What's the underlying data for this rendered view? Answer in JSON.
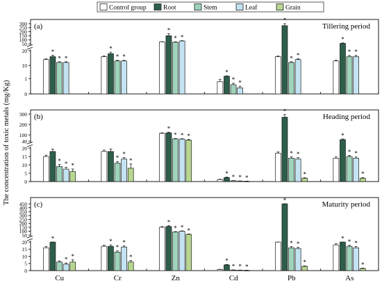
{
  "figure": {
    "ylabel": "The concentration of toxic metals (mg/Kg)",
    "legend": {
      "placement": "top",
      "entries": [
        {
          "name": "Control group",
          "color": "#ffffff"
        },
        {
          "name": "Root",
          "color": "#2d5e49"
        },
        {
          "name": "Stem",
          "color": "#9fd3bb"
        },
        {
          "name": "Leaf",
          "color": "#c3e3f2"
        },
        {
          "name": "Grain",
          "color": "#b7d690"
        }
      ]
    },
    "significance_marker": "*"
  },
  "chart_data": [
    {
      "type": "bar",
      "panel_label": "(a)",
      "title": "Tillering period",
      "categories": [
        "Cu",
        "Cr",
        "Zn",
        "Cd",
        "Pb",
        "As"
      ],
      "y_scale": "broken-linear",
      "y_breaks": [
        {
          "at": 20,
          "visible_ticks": [
            1,
            10,
            20
          ]
        },
        {
          "at": 50,
          "visible_ticks": [
            50,
            100,
            150,
            200,
            250,
            300
          ]
        }
      ],
      "y_ticks": [
        0,
        1,
        10,
        20,
        50,
        100,
        150,
        200,
        250,
        300
      ],
      "series": [
        {
          "name": "Control group",
          "values": [
            14,
            16,
            75,
            0.8,
            16,
            13
          ],
          "errors": [
            0.5,
            0.5,
            3,
            0.15,
            0.5,
            0.5
          ],
          "significant": [
            false,
            false,
            false,
            false,
            false,
            false
          ]
        },
        {
          "name": "Root",
          "values": [
            16,
            18,
            150,
            2.6,
            275,
            55
          ],
          "errors": [
            1,
            1,
            25,
            0.3,
            30,
            6
          ],
          "significant": [
            true,
            true,
            true,
            true,
            true,
            true
          ]
        },
        {
          "name": "Stem",
          "values": [
            12,
            13,
            70,
            0.6,
            12,
            16
          ],
          "errors": [
            0.5,
            0.5,
            5,
            0.1,
            0.5,
            0.8
          ],
          "significant": [
            true,
            true,
            true,
            true,
            true,
            true
          ]
        },
        {
          "name": "Leaf",
          "values": [
            12,
            13,
            85,
            0.4,
            14,
            16
          ],
          "errors": [
            0.5,
            0.5,
            4,
            0.1,
            0.6,
            0.8
          ],
          "significant": [
            true,
            true,
            true,
            true,
            true,
            true
          ]
        },
        {
          "name": "Grain",
          "values": [
            null,
            null,
            null,
            null,
            null,
            null
          ],
          "errors": [
            null,
            null,
            null,
            null,
            null,
            null
          ],
          "significant": [
            false,
            false,
            false,
            false,
            false,
            false
          ]
        }
      ]
    },
    {
      "type": "bar",
      "panel_label": "(b)",
      "title": "Heading period",
      "categories": [
        "Cu",
        "Cr",
        "Zn",
        "Cd",
        "Pb",
        "As"
      ],
      "y_scale": "broken-linear",
      "y_breaks": [
        {
          "at": 20,
          "visible_ticks": [
            0,
            5,
            10,
            15,
            20
          ]
        },
        {
          "at": 40,
          "visible_ticks": [
            40,
            100,
            200,
            300
          ]
        }
      ],
      "y_ticks": [
        0,
        5,
        10,
        15,
        20,
        40,
        100,
        200,
        300
      ],
      "series": [
        {
          "name": "Control group",
          "values": [
            15,
            18,
            115,
            1.2,
            17,
            14
          ],
          "errors": [
            0.8,
            0.8,
            5,
            0.2,
            0.8,
            0.7
          ],
          "significant": [
            false,
            false,
            false,
            false,
            false,
            false
          ]
        },
        {
          "name": "Root",
          "values": [
            18,
            18,
            120,
            2.4,
            270,
            55
          ],
          "errors": [
            1.5,
            1.5,
            6,
            0.3,
            25,
            6
          ],
          "significant": [
            false,
            false,
            true,
            true,
            true,
            true
          ]
        },
        {
          "name": "Stem",
          "values": [
            9,
            11,
            62,
            0.5,
            14,
            15
          ],
          "errors": [
            1.2,
            1,
            4,
            0.1,
            0.8,
            0.7
          ],
          "significant": [
            true,
            true,
            true,
            true,
            true,
            true
          ]
        },
        {
          "name": "Leaf",
          "values": [
            7.5,
            13.5,
            60,
            0.3,
            13.5,
            14
          ],
          "errors": [
            1,
            0.8,
            4,
            0.1,
            0.8,
            0.7
          ],
          "significant": [
            true,
            true,
            true,
            true,
            true,
            true
          ]
        },
        {
          "name": "Grain",
          "values": [
            6,
            8,
            50,
            0.2,
            2,
            2
          ],
          "errors": [
            1.5,
            2.5,
            8,
            0.1,
            0.3,
            0.4
          ],
          "significant": [
            true,
            true,
            true,
            true,
            true,
            true
          ]
        }
      ]
    },
    {
      "type": "bar",
      "panel_label": "(c)",
      "title": "Maturity period",
      "categories": [
        "Cu",
        "Cr",
        "Zn",
        "Cd",
        "Pb",
        "As"
      ],
      "y_scale": "broken-linear",
      "y_breaks": [
        {
          "at": 20,
          "visible_ticks": [
            0,
            5,
            10,
            15,
            20
          ]
        },
        {
          "at": 50,
          "visible_ticks": [
            50,
            100,
            150,
            200,
            250,
            300,
            350,
            400,
            450
          ]
        }
      ],
      "y_ticks": [
        0,
        5,
        10,
        15,
        20,
        50,
        100,
        150,
        200,
        250,
        300,
        350,
        400,
        450
      ],
      "series": [
        {
          "name": "Control group",
          "values": [
            16,
            17,
            150,
            0.8,
            20,
            18
          ],
          "errors": [
            0.8,
            0.8,
            8,
            0.15,
            0.8,
            0.8
          ],
          "significant": [
            false,
            false,
            false,
            false,
            false,
            false
          ]
        },
        {
          "name": "Root",
          "values": [
            20,
            17,
            160,
            4,
            470,
            22
          ],
          "errors": [
            1.5,
            1,
            12,
            0.3,
            18,
            2
          ],
          "significant": [
            true,
            true,
            true,
            true,
            true,
            true
          ]
        },
        {
          "name": "Stem",
          "values": [
            6,
            13,
            90,
            0.4,
            16,
            17
          ],
          "errors": [
            0.8,
            0.8,
            5,
            0.1,
            0.8,
            0.8
          ],
          "significant": [
            false,
            true,
            true,
            true,
            true,
            true
          ]
        },
        {
          "name": "Leaf",
          "values": [
            4.5,
            16.5,
            100,
            0.3,
            15.5,
            16
          ],
          "errors": [
            0.8,
            0.8,
            5,
            0.1,
            0.8,
            0.8
          ],
          "significant": [
            true,
            true,
            true,
            true,
            true,
            true
          ]
        },
        {
          "name": "Grain",
          "values": [
            6,
            6,
            60,
            0.2,
            3,
            1.5
          ],
          "errors": [
            1.5,
            1,
            5,
            0.1,
            0.3,
            0.3
          ],
          "significant": [
            true,
            true,
            true,
            true,
            true,
            true
          ]
        }
      ]
    }
  ]
}
